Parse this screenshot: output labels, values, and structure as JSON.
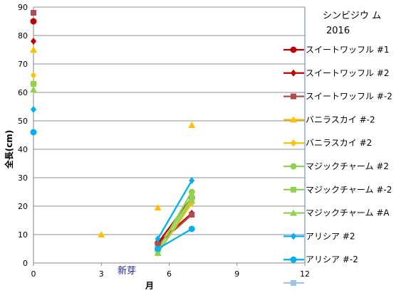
{
  "chart_data": {
    "type": "scatter",
    "title": "シンビジウ ム",
    "subtitle": "2016",
    "xlabel": "月",
    "ylabel": "全長(cm)",
    "xlim": [
      0,
      12
    ],
    "ylim": [
      0,
      90
    ],
    "xticks": [
      0,
      3,
      6,
      9,
      12
    ],
    "yticks": [
      0,
      10,
      20,
      30,
      40,
      50,
      60,
      70,
      80,
      90
    ],
    "grid": "horizontal",
    "legend_position": "right",
    "annotations": [
      {
        "text": "新芽",
        "x": 4.4,
        "y": -3
      }
    ],
    "series": [
      {
        "name": "スイートワッフル  #1",
        "color": "#c00000",
        "marker": "circle",
        "line": true,
        "points": [
          [
            0,
            85
          ],
          [
            5.5,
            7
          ],
          [
            7,
            23
          ]
        ]
      },
      {
        "name": "スイートワッフル  #2",
        "color": "#c00000",
        "marker": "diamond",
        "line": true,
        "points": [
          [
            0,
            78
          ],
          [
            5.5,
            7
          ],
          [
            7,
            17.5
          ]
        ]
      },
      {
        "name": "スイートワッフル  #-2",
        "color": "#b24b4b",
        "marker": "square",
        "line": true,
        "points": [
          [
            0,
            88
          ],
          [
            5.5,
            6.5
          ],
          [
            7,
            17
          ]
        ]
      },
      {
        "name": "バニラスカイ #-2",
        "color": "#ffc000",
        "marker": "triangle",
        "line": false,
        "points": [
          [
            0,
            75
          ],
          [
            3,
            10
          ],
          [
            5.5,
            19.5
          ],
          [
            7,
            48.5
          ]
        ]
      },
      {
        "name": "バニラスカイ  #2",
        "color": "#ffc000",
        "marker": "diamond",
        "line": true,
        "points": [
          [
            0,
            66
          ],
          [
            5.5,
            3.5
          ],
          [
            7,
            21
          ]
        ]
      },
      {
        "name": "マジックチャーム  #2",
        "color": "#92d050",
        "marker": "circle",
        "line": true,
        "points": [
          [
            0,
            63
          ],
          [
            5.5,
            4.5
          ],
          [
            7,
            25
          ]
        ]
      },
      {
        "name": "マジックチャーム  #-2",
        "color": "#92d050",
        "marker": "square",
        "line": true,
        "points": [
          [
            0,
            63
          ],
          [
            5.5,
            5
          ],
          [
            7,
            23
          ]
        ]
      },
      {
        "name": "マジックチャーム  #A",
        "color": "#92d050",
        "marker": "triangle",
        "line": true,
        "points": [
          [
            0,
            61
          ],
          [
            5.5,
            3.5
          ],
          [
            7,
            22
          ]
        ]
      },
      {
        "name": "アリシア #2",
        "color": "#00b0f0",
        "marker": "diamond",
        "line": true,
        "points": [
          [
            0,
            54
          ],
          [
            5.5,
            8.5
          ],
          [
            7,
            29
          ]
        ]
      },
      {
        "name": "アリシア #-2",
        "color": "#00b0f0",
        "marker": "circle",
        "line": true,
        "points": [
          [
            0,
            46
          ],
          [
            5.5,
            5
          ],
          [
            7,
            12
          ]
        ]
      },
      {
        "name": "",
        "color": "#9dc3e6",
        "marker": "square",
        "line": true,
        "points": []
      }
    ]
  }
}
